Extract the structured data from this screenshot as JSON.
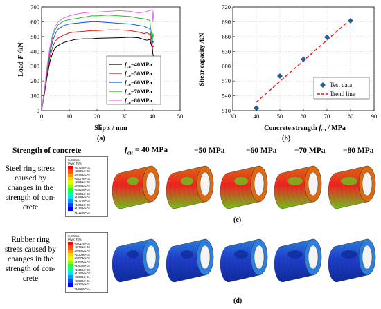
{
  "chart_data": [
    {
      "type": "line",
      "panel": "(a)",
      "xlabel_parts": [
        "Slip ",
        "s",
        " / mm"
      ],
      "ylabel_parts": [
        "Load ",
        "F",
        " /kN"
      ],
      "xlim": [
        0,
        50
      ],
      "ylim": [
        0,
        700
      ],
      "xticks": [
        "0",
        "10",
        "20",
        "30",
        "40",
        "50"
      ],
      "yticks": [
        "0",
        "100",
        "200",
        "300",
        "400",
        "500",
        "600",
        "700"
      ],
      "legend_position": "lower-right",
      "series": [
        {
          "name": "=40MPa",
          "color": "#000000",
          "x": [
            0,
            1,
            2,
            3,
            4,
            5,
            6,
            8,
            10,
            12,
            15,
            18,
            20,
            24,
            28,
            32,
            35,
            37,
            38,
            39,
            40,
            40.2,
            40.5
          ],
          "y": [
            0,
            110,
            230,
            330,
            390,
            425,
            440,
            460,
            470,
            480,
            485,
            485,
            488,
            490,
            492,
            495,
            492,
            480,
            475,
            480,
            420,
            380,
            360
          ]
        },
        {
          "name": "=50MPa",
          "color": "#ee1111",
          "x": [
            0,
            1,
            2,
            3,
            4,
            5,
            6,
            8,
            10,
            12,
            15,
            18,
            20,
            24,
            28,
            32,
            35,
            37,
            38,
            39,
            40,
            40.2,
            40.5
          ],
          "y": [
            0,
            120,
            250,
            360,
            430,
            470,
            490,
            510,
            525,
            530,
            535,
            540,
            540,
            545,
            545,
            540,
            530,
            520,
            525,
            515,
            420,
            440,
            430
          ]
        },
        {
          "name": "=60MPa",
          "color": "#1155dd",
          "x": [
            0,
            1,
            2,
            3,
            4,
            5,
            6,
            8,
            10,
            12,
            15,
            18,
            20,
            24,
            28,
            32,
            35,
            37,
            38,
            39,
            40,
            40.2,
            40.5
          ],
          "y": [
            0,
            130,
            270,
            390,
            470,
            520,
            550,
            575,
            585,
            590,
            595,
            600,
            600,
            595,
            590,
            585,
            575,
            570,
            560,
            555,
            450,
            470,
            460
          ]
        },
        {
          "name": "=70MPa",
          "color": "#22bb22",
          "x": [
            0,
            1,
            2,
            3,
            4,
            5,
            6,
            8,
            10,
            12,
            15,
            18,
            20,
            24,
            28,
            32,
            35,
            37,
            38,
            39,
            40,
            40.2,
            40.5
          ],
          "y": [
            0,
            135,
            285,
            410,
            500,
            550,
            580,
            605,
            615,
            620,
            630,
            640,
            640,
            645,
            640,
            635,
            625,
            620,
            615,
            610,
            470,
            520,
            500
          ]
        },
        {
          "name": "=80MPa",
          "color": "#ee66ee",
          "x": [
            0,
            1,
            2,
            3,
            4,
            5,
            6,
            8,
            10,
            12,
            15,
            18,
            20,
            24,
            28,
            32,
            35,
            37,
            38,
            39,
            40,
            40.2,
            40.5
          ],
          "y": [
            0,
            140,
            300,
            430,
            520,
            570,
            600,
            625,
            640,
            650,
            660,
            665,
            665,
            670,
            675,
            670,
            660,
            665,
            670,
            675,
            680,
            600,
            670
          ]
        }
      ]
    },
    {
      "type": "scatter",
      "panel": "(b)",
      "xlabel_parts": [
        "Concrete strength  ",
        "f",
        "cu",
        " / MPa"
      ],
      "ylabel": "Shear capacity /kN",
      "xlim": [
        30,
        90
      ],
      "ylim": [
        510,
        720
      ],
      "xticks": [
        "30",
        "40",
        "50",
        "60",
        "70",
        "80",
        "90"
      ],
      "yticks": [
        "510",
        "540",
        "570",
        "600",
        "630",
        "660",
        "690",
        "720"
      ],
      "legend_position": "lower-right",
      "series": [
        {
          "name": "Test data",
          "color": "#1f5f9f",
          "x": [
            40,
            50,
            60,
            70,
            80
          ],
          "y": [
            515,
            580,
            614,
            659,
            692
          ]
        },
        {
          "name": "Trend line",
          "color": "#ee1111",
          "x": [
            40,
            80
          ],
          "y": [
            527,
            695
          ]
        }
      ]
    }
  ],
  "caption_a": "(a)",
  "caption_b": "(b)",
  "caption_c": "(c)",
  "caption_d": "(d)",
  "legend_prefix": "f",
  "legend_sub": "cu",
  "header": {
    "strength_label": "Strength of concrete",
    "col1_prefix": "f",
    "col1_sub": "cu",
    "col1_suffix": " = 40 MPa",
    "col2": "=50 MPa",
    "col3": "=60 MPa",
    "col4": "=70 MPa",
    "col5": "=80 MPa"
  },
  "row_steel": {
    "label_lines": [
      "Steel ring stress",
      "caused by",
      "changes in the",
      "strength of con-",
      "crete"
    ],
    "legend_title": "S, Mises",
    "legend_avg": "(Avg: 75%)",
    "legend_values": [
      "+3.722e+02",
      "+3.505e+02",
      "+3.289e+02",
      "+3.072e+02",
      "+2.855e+02",
      "+2.639e+02",
      "+2.422e+02",
      "+2.206e+02",
      "+1.989e+02",
      "+1.772e+02",
      "+1.556e+02",
      "+1.339e+02",
      "+1.122e+02"
    ],
    "colors": [
      "#ee2222",
      "#dd6a10",
      "#6fc21e"
    ]
  },
  "row_rubber": {
    "label_lines": [
      "Rubber ring",
      "stress caused by",
      "changes in the",
      "strength of con-",
      "crete"
    ],
    "legend_title": "S, Mises",
    "legend_avg": "(Avg: 75%)",
    "legend_values": [
      "+3.017e+02",
      "+2.781e+02",
      "+2.545e+02",
      "+2.309e+02",
      "+2.073e+02",
      "+1.837e+02",
      "+1.602e+02",
      "+1.366e+02",
      "+1.130e+02",
      "+8.938e+01",
      "+6.580e+01",
      "+4.221e+01",
      "+1.862e+01"
    ],
    "colors": [
      "#1f3fc8",
      "#2a7fe0",
      "#0f2a9a"
    ]
  },
  "contour_colors": [
    "#ff0000",
    "#ff5a00",
    "#ff9a00",
    "#ffd200",
    "#d8ff00",
    "#8cff00",
    "#24ff3c",
    "#00ff9c",
    "#00e0ff",
    "#0096ff",
    "#0048ff",
    "#0000e6"
  ]
}
